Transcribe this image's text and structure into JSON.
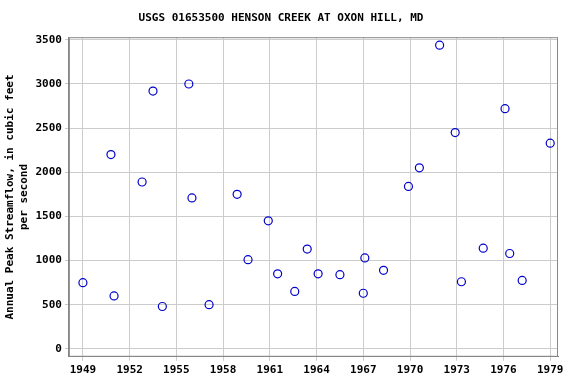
{
  "chart_data": {
    "type": "scatter",
    "title": "USGS 01653500 HENSON CREEK AT OXON HILL, MD",
    "y_label": [
      "Annual Peak Streamflow, in cubic feet",
      "per second"
    ],
    "x": [
      1949.0,
      1950.8,
      1951.0,
      1952.8,
      1953.5,
      1954.1,
      1955.8,
      1956.0,
      1957.1,
      1958.9,
      1959.6,
      1960.9,
      1961.5,
      1962.6,
      1963.4,
      1964.1,
      1965.5,
      1967.0,
      1967.1,
      1968.3,
      1969.9,
      1970.6,
      1971.9,
      1972.9,
      1973.3,
      1974.7,
      1976.1,
      1976.4,
      1977.2,
      1979.0
    ],
    "values": [
      750,
      2200,
      600,
      1890,
      2920,
      480,
      3000,
      1710,
      500,
      1750,
      1010,
      1450,
      850,
      650,
      1130,
      850,
      840,
      630,
      1030,
      890,
      1840,
      2050,
      3440,
      2450,
      760,
      1140,
      2720,
      1080,
      775,
      2330
    ],
    "color": "#0000cc",
    "marker": "circle",
    "xlim": [
      1948.1,
      1979.5
    ],
    "xticks": [
      1949,
      1952,
      1955,
      1958,
      1961,
      1964,
      1967,
      1970,
      1973,
      1976,
      1979
    ],
    "ylim": [
      -90,
      3530
    ],
    "yticks": [
      0,
      500,
      1000,
      1500,
      2000,
      2500,
      3000,
      3500
    ],
    "grid": true
  }
}
